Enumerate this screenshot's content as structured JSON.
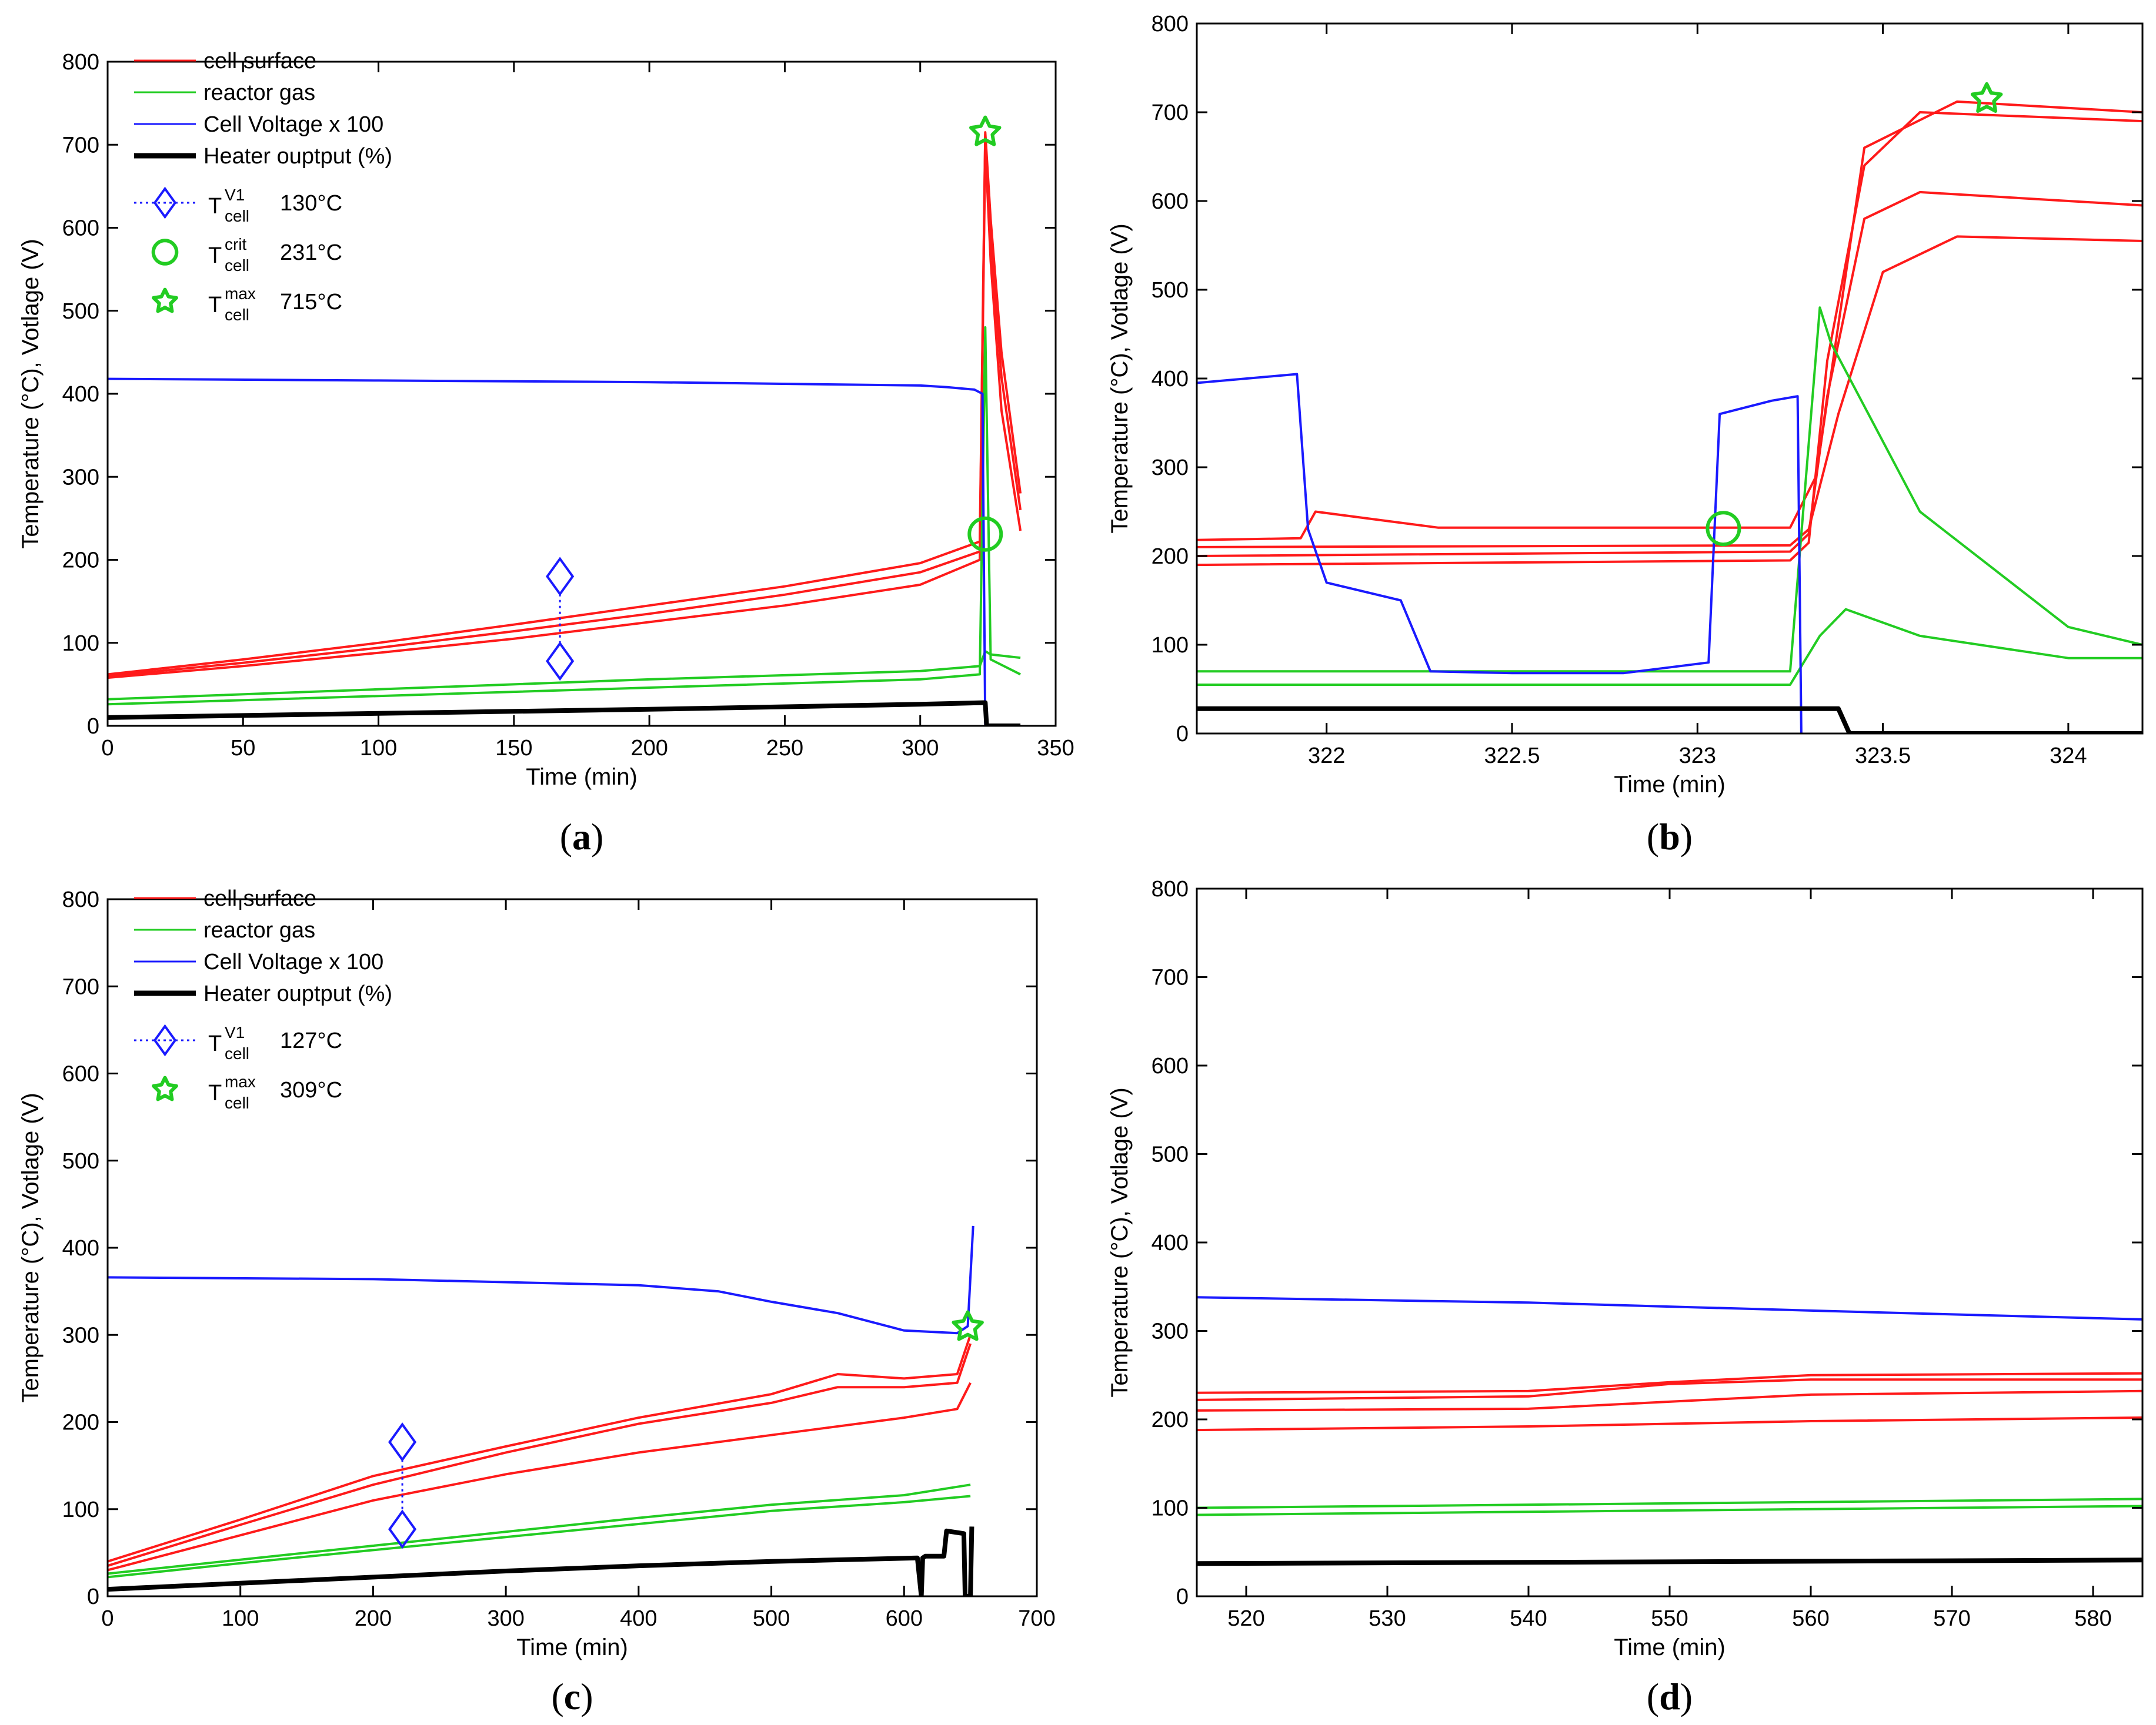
{
  "figure": {
    "background": "#ffffff"
  },
  "colors": {
    "cell_surface": "#ff1a1a",
    "reactor_gas": "#22cc22",
    "cell_voltage": "#1a1aff",
    "heater": "#000000",
    "marker_v1": "#1a1aff",
    "marker_crit": "#22cc22",
    "marker_max": "#22cc22"
  },
  "chart_data": [
    {
      "panel": "a",
      "type": "line",
      "panel_label": "a",
      "xlabel": "Time (min)",
      "ylabel": "Temperature (°C), Votlage (V)",
      "xlim": [
        0,
        350
      ],
      "ylim": [
        0,
        800
      ],
      "xticks": [
        0,
        50,
        100,
        150,
        200,
        250,
        300,
        350
      ],
      "yticks": [
        0,
        100,
        200,
        300,
        400,
        500,
        600,
        700,
        800
      ],
      "legend": {
        "position": "top-left",
        "entries": [
          {
            "kind": "line",
            "color": "cell_surface",
            "label": "cell surface"
          },
          {
            "kind": "line",
            "color": "reactor_gas",
            "label": "reactor gas"
          },
          {
            "kind": "line",
            "color": "cell_voltage",
            "label": "Cell Voltage x 100"
          },
          {
            "kind": "thick",
            "color": "heater",
            "label": "Heater ouptput (%)"
          },
          {
            "kind": "diamond",
            "color": "marker_v1",
            "base": "T",
            "sub": "cell",
            "sup": "V1",
            "value": "130°C"
          },
          {
            "kind": "circle",
            "color": "marker_crit",
            "base": "T",
            "sub": "cell",
            "sup": "crit",
            "value": "231°C"
          },
          {
            "kind": "star",
            "color": "marker_max",
            "base": "T",
            "sub": "cell",
            "sup": "max",
            "value": "715°C"
          }
        ]
      },
      "series": [
        {
          "name": "cell surface (lower)",
          "color": "cell_surface",
          "x": [
            0,
            50,
            100,
            150,
            200,
            250,
            300,
            322,
            324,
            326,
            330,
            337
          ],
          "y": [
            58,
            72,
            88,
            105,
            125,
            145,
            170,
            200,
            700,
            560,
            380,
            235
          ]
        },
        {
          "name": "cell surface (mid)",
          "color": "cell_surface",
          "x": [
            0,
            50,
            100,
            150,
            200,
            250,
            300,
            322,
            324,
            326,
            330,
            337
          ],
          "y": [
            60,
            76,
            94,
            114,
            135,
            158,
            185,
            210,
            712,
            590,
            420,
            260
          ]
        },
        {
          "name": "cell surface (upper)",
          "color": "cell_surface",
          "x": [
            0,
            50,
            100,
            150,
            200,
            250,
            300,
            322,
            324,
            326,
            330,
            337
          ],
          "y": [
            62,
            80,
            100,
            122,
            145,
            168,
            196,
            222,
            715,
            610,
            450,
            280
          ]
        },
        {
          "name": "reactor gas (lower)",
          "color": "reactor_gas",
          "x": [
            0,
            100,
            200,
            300,
            322,
            324,
            326,
            337
          ],
          "y": [
            26,
            36,
            46,
            56,
            62,
            480,
            80,
            62
          ]
        },
        {
          "name": "reactor gas (upper)",
          "color": "reactor_gas",
          "x": [
            0,
            100,
            200,
            300,
            322,
            324,
            326,
            337
          ],
          "y": [
            32,
            44,
            56,
            66,
            72,
            90,
            86,
            82
          ]
        },
        {
          "name": "Cell Voltage x 100",
          "color": "cell_voltage",
          "x": [
            0,
            100,
            200,
            300,
            310,
            320,
            323,
            323.5,
            324
          ],
          "y": [
            418,
            416,
            414,
            410,
            408,
            405,
            400,
            200,
            0
          ]
        },
        {
          "name": "Heater output",
          "color": "heater",
          "x": [
            0,
            100,
            200,
            300,
            324,
            324.5,
            337
          ],
          "y": [
            10,
            15,
            20,
            26,
            28,
            0,
            0
          ]
        }
      ],
      "markers": [
        {
          "kind": "diamond",
          "x": 167,
          "y": 180
        },
        {
          "kind": "diamond",
          "x": 167,
          "y": 78
        },
        {
          "kind": "circle",
          "x": 324,
          "y": 231
        },
        {
          "kind": "star",
          "x": 324,
          "y": 715
        }
      ]
    },
    {
      "panel": "b",
      "type": "line",
      "panel_label": "b",
      "xlabel": "Time (min)",
      "ylabel": "Temperature (°C), Votlage (V)",
      "xlim": [
        321.65,
        324.2
      ],
      "ylim": [
        0,
        800
      ],
      "xticks": [
        322,
        322.5,
        323,
        323.5,
        324
      ],
      "yticks": [
        0,
        100,
        200,
        300,
        400,
        500,
        600,
        700,
        800
      ],
      "series": [
        {
          "name": "cell surface 1",
          "color": "cell_surface",
          "x": [
            321.65,
            323.25,
            323.3,
            323.35,
            323.45,
            323.6,
            324.2
          ],
          "y": [
            190,
            195,
            215,
            420,
            640,
            700,
            690
          ]
        },
        {
          "name": "cell surface 2",
          "color": "cell_surface",
          "x": [
            321.65,
            323.25,
            323.3,
            323.35,
            323.45,
            323.6,
            324.2
          ],
          "y": [
            200,
            205,
            225,
            380,
            580,
            610,
            595
          ]
        },
        {
          "name": "cell surface 3",
          "color": "cell_surface",
          "x": [
            321.65,
            323.25,
            323.3,
            323.38,
            323.5,
            323.7,
            324.2
          ],
          "y": [
            210,
            212,
            230,
            360,
            520,
            560,
            555
          ]
        },
        {
          "name": "cell surface 4",
          "color": "cell_surface",
          "x": [
            321.65,
            321.93,
            321.97,
            322.3,
            323.25,
            323.32,
            323.45,
            323.7,
            324.2
          ],
          "y": [
            218,
            220,
            250,
            232,
            232,
            290,
            660,
            712,
            700
          ]
        },
        {
          "name": "reactor gas 1",
          "color": "reactor_gas",
          "x": [
            321.65,
            323.25,
            323.33,
            323.36,
            323.6,
            324.0,
            324.2
          ],
          "y": [
            70,
            70,
            480,
            440,
            250,
            120,
            100
          ]
        },
        {
          "name": "reactor gas 2",
          "color": "reactor_gas",
          "x": [
            321.65,
            323.25,
            323.33,
            323.4,
            323.6,
            324.0,
            324.2
          ],
          "y": [
            55,
            55,
            110,
            140,
            110,
            85,
            85
          ]
        },
        {
          "name": "Cell Voltage x 100",
          "color": "cell_voltage",
          "x": [
            321.65,
            321.92,
            321.95,
            322.0,
            322.2,
            322.28,
            322.5,
            322.8,
            323.03,
            323.06,
            323.2,
            323.27,
            323.28
          ],
          "y": [
            395,
            405,
            230,
            170,
            150,
            70,
            68,
            68,
            80,
            360,
            375,
            380,
            0
          ]
        },
        {
          "name": "Heater output",
          "color": "heater",
          "x": [
            321.65,
            323.38,
            323.41,
            324.2
          ],
          "y": [
            28,
            28,
            0,
            0
          ]
        }
      ],
      "markers": [
        {
          "kind": "circle",
          "x": 323.07,
          "y": 231
        },
        {
          "kind": "star",
          "x": 323.78,
          "y": 715
        }
      ]
    },
    {
      "panel": "c",
      "type": "line",
      "panel_label": "c",
      "xlabel": "Time (min)",
      "ylabel": "Temperature (°C), Votlage (V)",
      "xlim": [
        0,
        700
      ],
      "ylim": [
        0,
        800
      ],
      "xticks": [
        0,
        100,
        200,
        300,
        400,
        500,
        600,
        700
      ],
      "yticks": [
        0,
        100,
        200,
        300,
        400,
        500,
        600,
        700,
        800
      ],
      "legend": {
        "position": "top-left",
        "entries": [
          {
            "kind": "line",
            "color": "cell_surface",
            "label": "cell surface"
          },
          {
            "kind": "line",
            "color": "reactor_gas",
            "label": "reactor gas"
          },
          {
            "kind": "line",
            "color": "cell_voltage",
            "label": "Cell Voltage x 100"
          },
          {
            "kind": "thick",
            "color": "heater",
            "label": "Heater ouptput (%)"
          },
          {
            "kind": "diamond",
            "color": "marker_v1",
            "base": "T",
            "sub": "cell",
            "sup": "V1",
            "value": "127°C"
          },
          {
            "kind": "star",
            "color": "marker_max",
            "base": "T",
            "sub": "cell",
            "sup": "max",
            "value": "309°C"
          }
        ]
      },
      "series": [
        {
          "name": "cell surface (lower)",
          "color": "cell_surface",
          "x": [
            0,
            100,
            200,
            300,
            400,
            500,
            600,
            640,
            650
          ],
          "y": [
            30,
            70,
            110,
            140,
            165,
            185,
            205,
            215,
            245
          ]
        },
        {
          "name": "cell surface (mid)",
          "color": "cell_surface",
          "x": [
            0,
            100,
            200,
            300,
            400,
            500,
            550,
            600,
            640,
            650
          ],
          "y": [
            35,
            82,
            128,
            165,
            198,
            222,
            240,
            240,
            245,
            290
          ]
        },
        {
          "name": "cell surface (upper)",
          "color": "cell_surface",
          "x": [
            0,
            100,
            200,
            300,
            400,
            500,
            550,
            600,
            640,
            650
          ],
          "y": [
            40,
            88,
            138,
            172,
            205,
            232,
            255,
            250,
            255,
            300
          ]
        },
        {
          "name": "reactor gas (lower)",
          "color": "reactor_gas",
          "x": [
            0,
            100,
            200,
            300,
            400,
            500,
            600,
            650
          ],
          "y": [
            22,
            38,
            53,
            68,
            83,
            98,
            108,
            115
          ]
        },
        {
          "name": "reactor gas (upper)",
          "color": "reactor_gas",
          "x": [
            0,
            100,
            200,
            300,
            400,
            500,
            600,
            650
          ],
          "y": [
            26,
            42,
            58,
            74,
            90,
            105,
            116,
            128
          ]
        },
        {
          "name": "Cell Voltage x 100",
          "color": "cell_voltage",
          "x": [
            0,
            200,
            400,
            460,
            500,
            550,
            600,
            640,
            648,
            652
          ],
          "y": [
            366,
            364,
            357,
            350,
            338,
            325,
            305,
            302,
            310,
            425
          ]
        },
        {
          "name": "Heater output",
          "color": "heater",
          "x": [
            0,
            100,
            200,
            300,
            400,
            500,
            610,
            613,
            614,
            616,
            630,
            632,
            645,
            646,
            650,
            651
          ],
          "y": [
            8,
            15,
            22,
            29,
            35,
            40,
            44,
            0,
            44,
            46,
            46,
            75,
            72,
            0,
            0,
            80
          ]
        }
      ],
      "markers": [
        {
          "kind": "diamond",
          "x": 222,
          "y": 177
        },
        {
          "kind": "diamond",
          "x": 222,
          "y": 77
        },
        {
          "kind": "star",
          "x": 648,
          "y": 309
        }
      ]
    },
    {
      "panel": "d",
      "type": "line",
      "panel_label": "d",
      "xlabel": "Time (min)",
      "ylabel": "Temperature (°C), Votlage (V)",
      "xlim": [
        516.5,
        583.5
      ],
      "ylim": [
        0,
        800
      ],
      "xticks": [
        520,
        530,
        540,
        550,
        560,
        570,
        580
      ],
      "yticks": [
        0,
        100,
        200,
        300,
        400,
        500,
        600,
        700,
        800
      ],
      "series": [
        {
          "name": "cell surface 1",
          "color": "cell_surface",
          "x": [
            516.5,
            540,
            550,
            560,
            583.5
          ],
          "y": [
            188,
            192,
            195,
            198,
            202
          ]
        },
        {
          "name": "cell surface 2",
          "color": "cell_surface",
          "x": [
            516.5,
            540,
            550,
            560,
            583.5
          ],
          "y": [
            210,
            212,
            220,
            228,
            232
          ]
        },
        {
          "name": "cell surface 3",
          "color": "cell_surface",
          "x": [
            516.5,
            540,
            550,
            560,
            583.5
          ],
          "y": [
            222,
            226,
            240,
            245,
            245
          ]
        },
        {
          "name": "cell surface 4",
          "color": "cell_surface",
          "x": [
            516.5,
            540,
            550,
            560,
            583.5
          ],
          "y": [
            230,
            232,
            242,
            250,
            252
          ]
        },
        {
          "name": "reactor gas 1",
          "color": "reactor_gas",
          "x": [
            516.5,
            583.5
          ],
          "y": [
            92,
            102
          ]
        },
        {
          "name": "reactor gas 2",
          "color": "reactor_gas",
          "x": [
            516.5,
            583.5
          ],
          "y": [
            100,
            110
          ]
        },
        {
          "name": "Cell Voltage x 100",
          "color": "cell_voltage",
          "x": [
            516.5,
            540,
            560,
            583.5
          ],
          "y": [
            338,
            332,
            323,
            313
          ]
        },
        {
          "name": "Heater output",
          "color": "heater",
          "x": [
            516.5,
            583.5
          ],
          "y": [
            37,
            41
          ]
        }
      ],
      "markers": []
    }
  ]
}
